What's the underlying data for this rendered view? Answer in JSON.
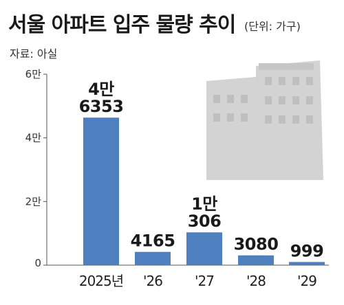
{
  "chart_data": {
    "type": "bar",
    "title": "서울 아파트 입주 물량 추이",
    "unit": "(단위: 가구)",
    "source": "자료: 아실",
    "categories": [
      "2025년",
      "'26",
      "'27",
      "'28",
      "'29"
    ],
    "values": [
      46353,
      4165,
      10306,
      3080,
      999
    ],
    "data_labels": [
      [
        "4만",
        "6353"
      ],
      [
        "4165"
      ],
      [
        "1만",
        "306"
      ],
      [
        "3080"
      ],
      [
        "999"
      ]
    ],
    "y_ticks": [
      {
        "value": 0,
        "label": "0"
      },
      {
        "value": 20000,
        "label": "2만"
      },
      {
        "value": 40000,
        "label": "4만"
      },
      {
        "value": 60000,
        "label": "6만"
      }
    ],
    "ylim": [
      0,
      60000
    ],
    "bar_color": "#4e7fbf",
    "background_graphic": "apartment-buildings",
    "grid": false
  }
}
